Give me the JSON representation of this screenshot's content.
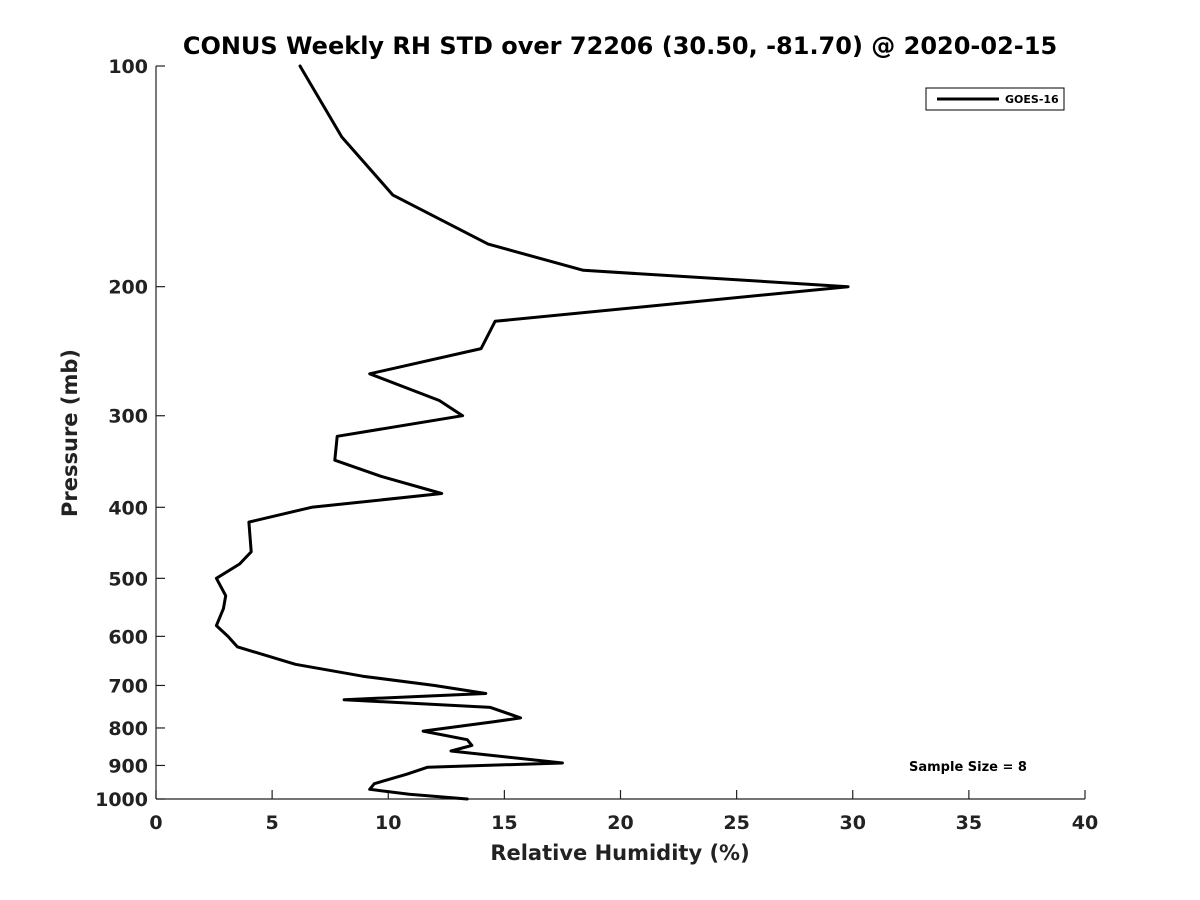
{
  "chart_data": {
    "type": "line",
    "title": "CONUS Weekly RH STD over 72206 (30.50, -81.70) @ 2020-02-15",
    "xlabel": "Relative Humidity (%)",
    "ylabel": "Pressure (mb)",
    "xlim": [
      0,
      40
    ],
    "ylim": [
      100,
      1000
    ],
    "y_scale": "log",
    "y_direction": "reversed",
    "grid": false,
    "legend_placement": "top-right",
    "annotation": "Sample Size = 8",
    "x_ticks": [
      0,
      5,
      10,
      15,
      20,
      25,
      30,
      35,
      40
    ],
    "y_ticks": [
      100,
      200,
      300,
      400,
      500,
      600,
      700,
      800,
      900,
      1000
    ],
    "series": [
      {
        "name": "GOES-16",
        "color": "#000000",
        "points": [
          [
            6.2,
            100
          ],
          [
            8.0,
            125
          ],
          [
            10.2,
            150
          ],
          [
            14.3,
            175
          ],
          [
            18.4,
            190
          ],
          [
            29.8,
            200
          ],
          [
            14.6,
            223
          ],
          [
            14.0,
            243
          ],
          [
            9.2,
            263
          ],
          [
            12.2,
            286
          ],
          [
            13.2,
            300
          ],
          [
            7.8,
            320
          ],
          [
            7.7,
            345
          ],
          [
            9.7,
            363
          ],
          [
            12.3,
            383
          ],
          [
            6.7,
            400
          ],
          [
            4.0,
            419
          ],
          [
            4.1,
            460
          ],
          [
            3.6,
            478
          ],
          [
            2.6,
            500
          ],
          [
            3.0,
            528
          ],
          [
            2.9,
            550
          ],
          [
            2.6,
            580
          ],
          [
            3.1,
            600
          ],
          [
            3.5,
            620
          ],
          [
            6.0,
            655
          ],
          [
            8.9,
            680
          ],
          [
            12.0,
            700
          ],
          [
            14.2,
            718
          ],
          [
            8.1,
            732
          ],
          [
            14.4,
            750
          ],
          [
            15.7,
            775
          ],
          [
            14.5,
            785
          ],
          [
            11.5,
            808
          ],
          [
            13.4,
            830
          ],
          [
            13.6,
            845
          ],
          [
            12.7,
            860
          ],
          [
            17.5,
            893
          ],
          [
            11.7,
            905
          ],
          [
            10.8,
            925
          ],
          [
            9.4,
            953
          ],
          [
            9.2,
            970
          ],
          [
            10.9,
            985
          ],
          [
            13.4,
            1000
          ]
        ]
      }
    ]
  }
}
